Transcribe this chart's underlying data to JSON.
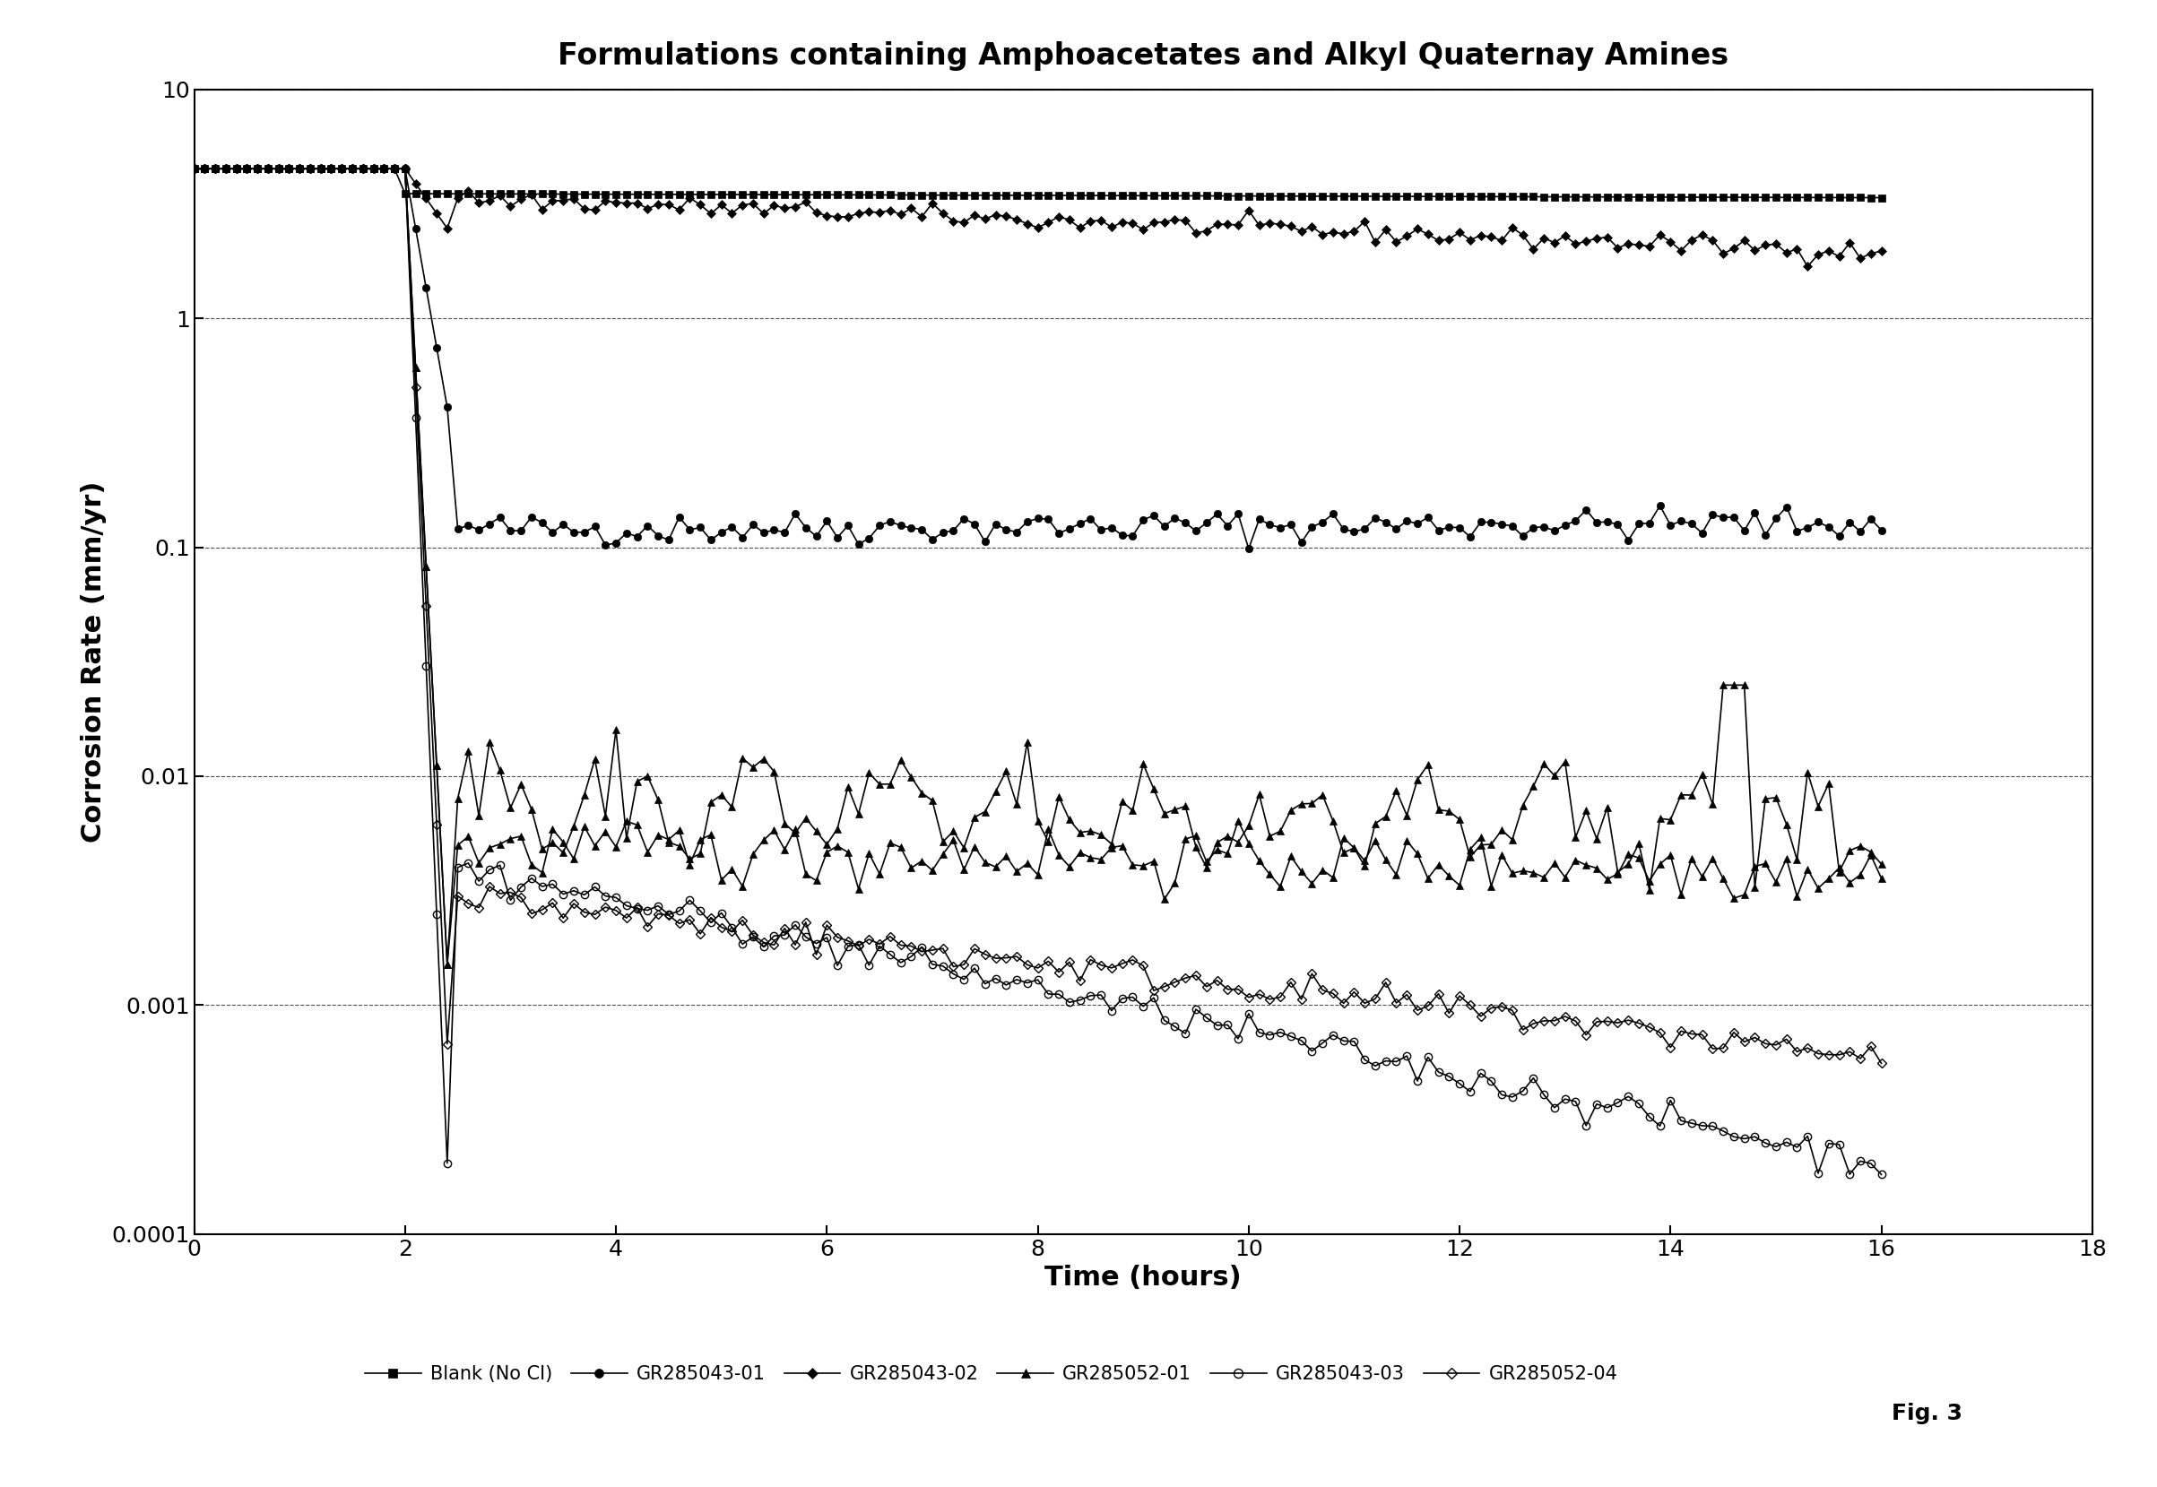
{
  "title": "Formulations containing Amphoacetates and Alkyl Quaternay Amines",
  "xlabel": "Time (hours)",
  "ylabel": "Corrosion Rate (mm/yr)",
  "fig_label": "Fig. 3",
  "xlim": [
    0,
    18
  ],
  "ylim_log": [
    0.0001,
    10
  ],
  "ytick_vals": [
    0.0001,
    0.001,
    0.01,
    0.1,
    1,
    10
  ],
  "ytick_labels": [
    "0.0001",
    "0.001",
    "0.01",
    "0.1",
    "1",
    "10"
  ],
  "xticks": [
    0,
    2,
    4,
    6,
    8,
    10,
    12,
    14,
    16,
    18
  ]
}
